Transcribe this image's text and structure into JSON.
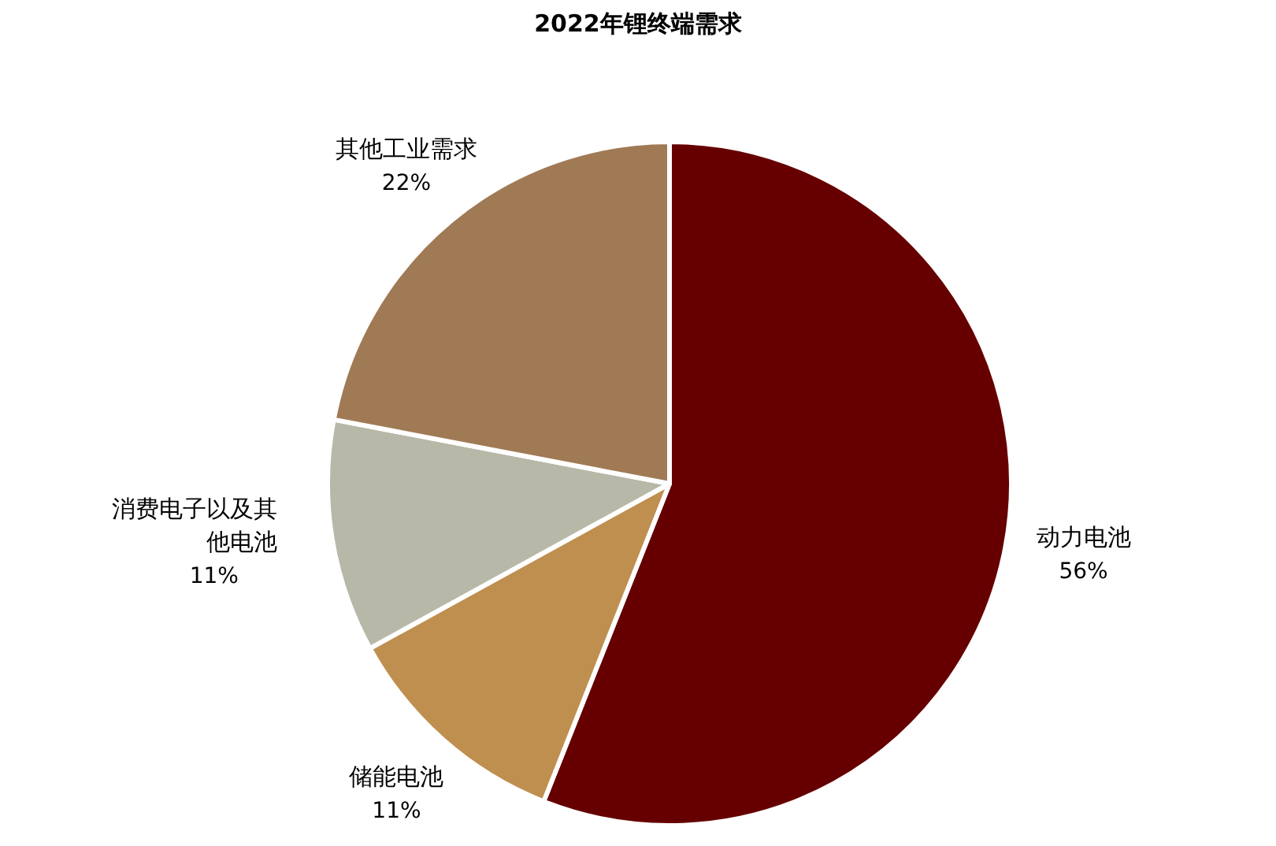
{
  "chart_data": {
    "type": "pie",
    "title": "2022年锂终端需求",
    "categories": [
      "动力电池",
      "储能电池",
      "消费电子以及其他电池",
      "其他工业需求"
    ],
    "values": [
      56,
      11,
      11,
      22
    ],
    "value_labels": [
      "56%",
      "11%",
      "11%",
      "22%"
    ],
    "colors": [
      "#660000",
      "#bf8f4f",
      "#b8b8a8",
      "#a07a55"
    ]
  }
}
